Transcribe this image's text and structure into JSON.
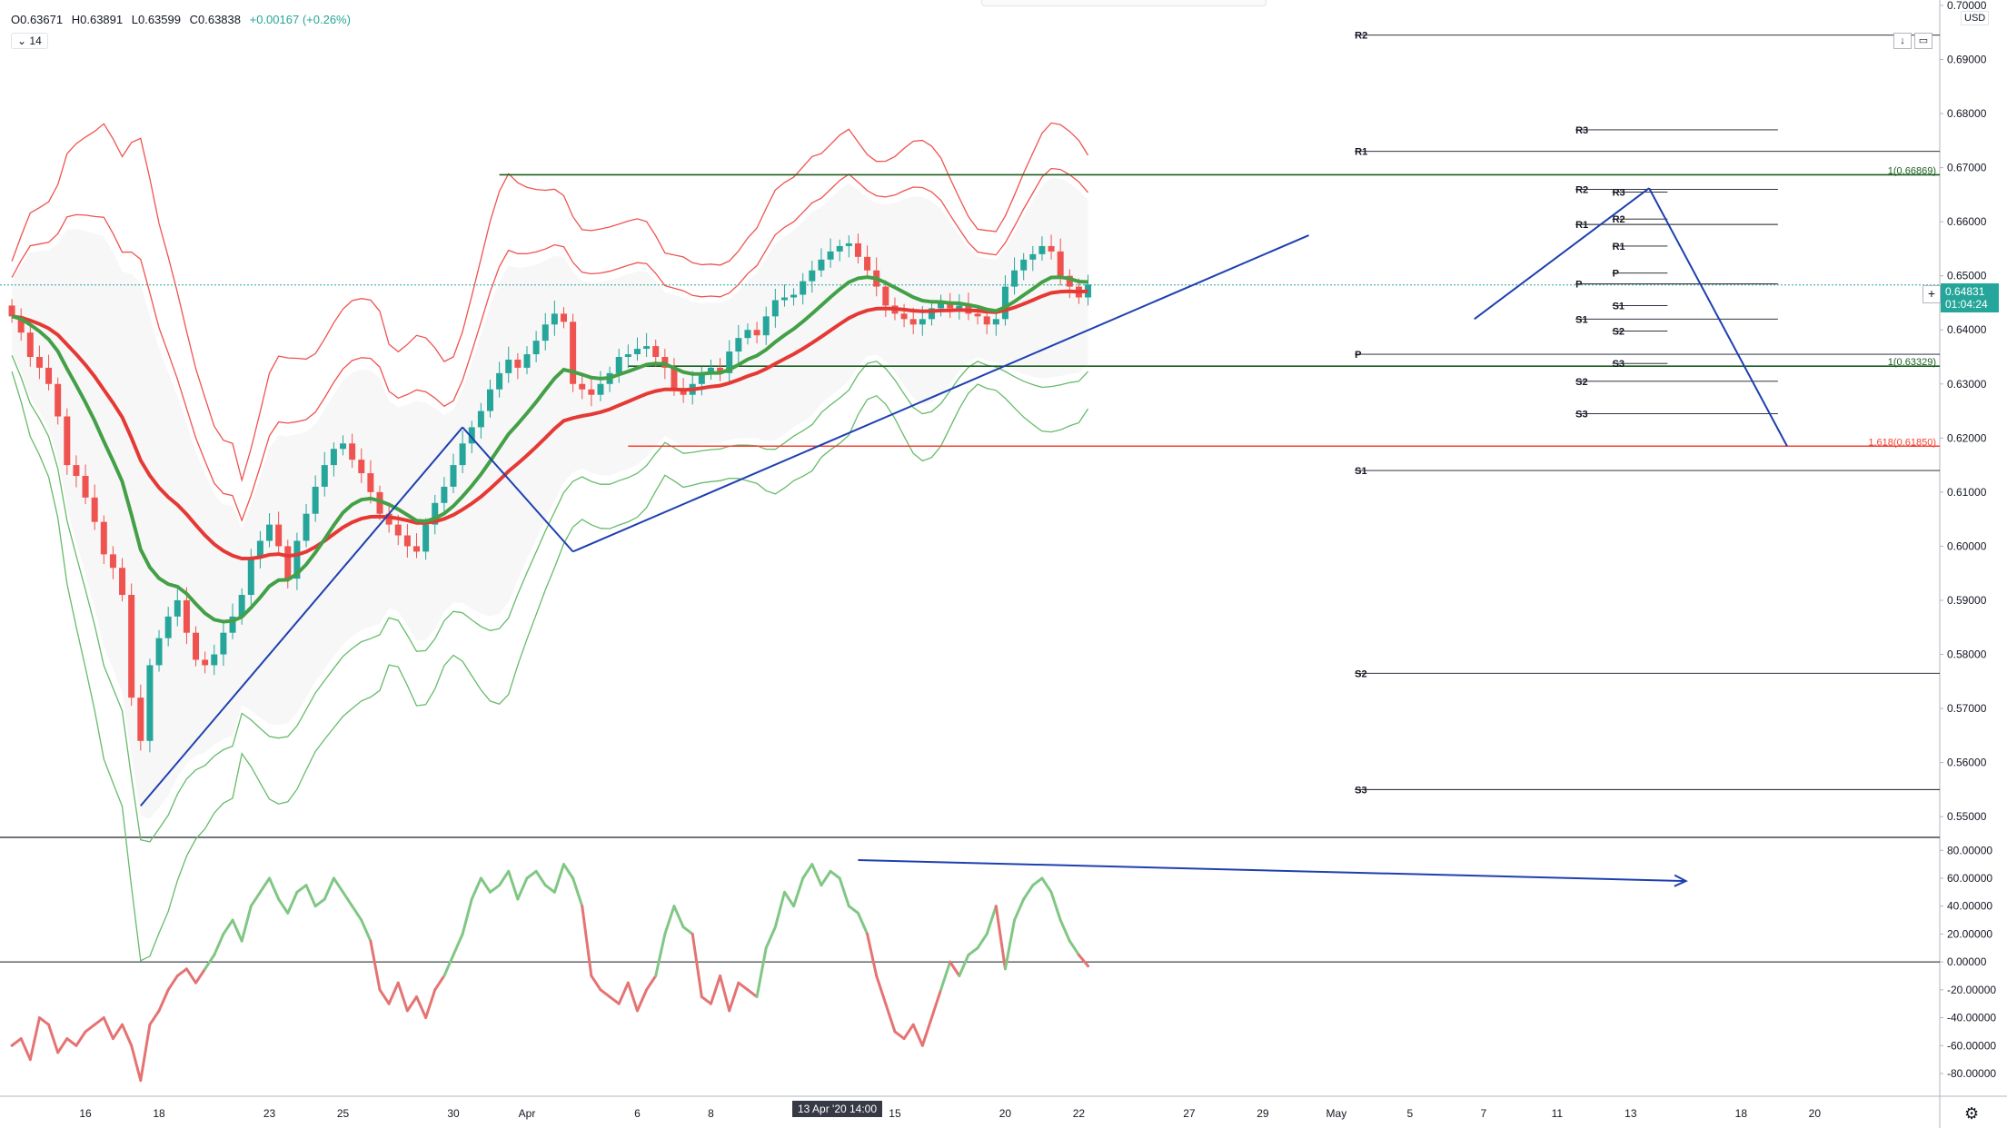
{
  "header": {
    "open": "O0.63671",
    "high": "H0.63891",
    "low": "L0.63599",
    "close": "C0.63838",
    "change": "+0.00167 (+0.26%)",
    "indicator_toggle": "⌄",
    "indicator_period": "14"
  },
  "currency": "USD",
  "last_price": "0.64831",
  "countdown": "01:04:24",
  "crosshair_date": "13 Apr '20   14:00",
  "colors": {
    "up": "#26a69a",
    "down": "#ef5350",
    "green_line": "#43a047",
    "red_line": "#e53935",
    "trend": "#1e40af",
    "fib": "#1b5e20",
    "fib_red": "#f44336"
  },
  "chart_data": {
    "type": "candlestick",
    "symbol_quote": "USD",
    "price_axis": {
      "ticks": [
        "0.55000",
        "0.56000",
        "0.57000",
        "0.58000",
        "0.59000",
        "0.60000",
        "0.61000",
        "0.62000",
        "0.63000",
        "0.64000",
        "0.65000",
        "0.66000",
        "0.67000",
        "0.68000",
        "0.69000",
        "0.70000"
      ],
      "range": [
        0.5465,
        0.701
      ]
    },
    "time_axis": {
      "labels": [
        "16",
        "18",
        "23",
        "25",
        "30",
        "Apr",
        "6",
        "8",
        "15",
        "20",
        "22",
        "27",
        "29",
        "May",
        "5",
        "7",
        "11",
        "13",
        "18",
        "20"
      ],
      "label_bars": [
        8,
        16,
        28,
        36,
        48,
        56,
        68,
        76,
        96,
        108,
        116,
        128,
        136,
        144,
        152,
        160,
        168,
        176,
        188,
        196
      ]
    },
    "candles_close": [
      0.6425,
      0.6395,
      0.635,
      0.633,
      0.63,
      0.624,
      0.615,
      0.613,
      0.609,
      0.6045,
      0.5985,
      0.596,
      0.591,
      0.572,
      0.564,
      0.578,
      0.583,
      0.587,
      0.59,
      0.584,
      0.579,
      0.578,
      0.58,
      0.584,
      0.587,
      0.591,
      0.598,
      0.601,
      0.604,
      0.6,
      0.594,
      0.601,
      0.606,
      0.611,
      0.615,
      0.618,
      0.619,
      0.616,
      0.6135,
      0.61,
      0.606,
      0.604,
      0.602,
      0.6,
      0.599,
      0.604,
      0.608,
      0.611,
      0.615,
      0.619,
      0.622,
      0.625,
      0.629,
      0.632,
      0.6345,
      0.633,
      0.6355,
      0.638,
      0.641,
      0.643,
      0.6415,
      0.63,
      0.629,
      0.628,
      0.63,
      0.632,
      0.635,
      0.6355,
      0.6365,
      0.637,
      0.635,
      0.633,
      0.629,
      0.628,
      0.63,
      0.632,
      0.633,
      0.632,
      0.636,
      0.6385,
      0.64,
      0.639,
      0.6425,
      0.6455,
      0.646,
      0.6465,
      0.649,
      0.651,
      0.653,
      0.6545,
      0.6555,
      0.656,
      0.6535,
      0.651,
      0.648,
      0.6445,
      0.643,
      0.642,
      0.641,
      0.642,
      0.644,
      0.645,
      0.644,
      0.6445,
      0.643,
      0.6425,
      0.641,
      0.642,
      0.648,
      0.651,
      0.653,
      0.654,
      0.6555,
      0.6545,
      0.65,
      0.648,
      0.646,
      0.6484
    ],
    "pivot_levels_monthly": [
      {
        "label": "R2",
        "price": 0.6945
      },
      {
        "label": "R1",
        "price": 0.673
      },
      {
        "label": "P",
        "price": 0.6355
      },
      {
        "label": "S1",
        "price": 0.614
      },
      {
        "label": "S2",
        "price": 0.5765
      },
      {
        "label": "S3",
        "price": 0.555
      }
    ],
    "pivot_levels_weekly": [
      {
        "label": "R3",
        "price": 0.677
      },
      {
        "label": "R2",
        "price": 0.666
      },
      {
        "label": "R1",
        "price": 0.6595
      },
      {
        "label": "P",
        "price": 0.6485
      },
      {
        "label": "S1",
        "price": 0.642
      },
      {
        "label": "S2",
        "price": 0.6305
      },
      {
        "label": "S3",
        "price": 0.6245
      }
    ],
    "pivot_levels_daily": [
      {
        "label": "R3",
        "price": 0.6655
      },
      {
        "label": "R2",
        "price": 0.6605
      },
      {
        "label": "R1",
        "price": 0.6555
      },
      {
        "label": "P",
        "price": 0.6505
      },
      {
        "label": "S1",
        "price": 0.6445
      },
      {
        "label": "S2",
        "price": 0.6398
      },
      {
        "label": "S3",
        "price": 0.6338
      }
    ],
    "fib_levels": [
      {
        "label": "1(0.66869)",
        "price": 0.66869,
        "color": "#1b5e20"
      },
      {
        "label": "1(0.63329)",
        "price": 0.63329,
        "color": "#1b5e20"
      },
      {
        "label": "1.618(0.61850)",
        "price": 0.6185,
        "color": "#f44336"
      }
    ],
    "oscillator": {
      "ticks": [
        "-80.00000",
        "-60.00000",
        "-40.00000",
        "-20.00000",
        "0.00000",
        "20.00000",
        "40.00000",
        "60.00000",
        "80.00000"
      ],
      "range": [
        -95,
        88
      ],
      "values": [
        -60,
        -55,
        -70,
        -40,
        -45,
        -65,
        -55,
        -60,
        -50,
        -45,
        -40,
        -55,
        -45,
        -60,
        -85,
        -45,
        -35,
        -20,
        -10,
        -5,
        -15,
        -5,
        5,
        20,
        30,
        15,
        40,
        50,
        60,
        45,
        35,
        50,
        55,
        40,
        45,
        60,
        50,
        40,
        30,
        15,
        -20,
        -30,
        -15,
        -35,
        -25,
        -40,
        -20,
        -10,
        5,
        20,
        45,
        60,
        50,
        55,
        65,
        45,
        60,
        65,
        55,
        50,
        70,
        60,
        40,
        -10,
        -20,
        -25,
        -30,
        -15,
        -35,
        -20,
        -10,
        20,
        40,
        25,
        20,
        -25,
        -30,
        -10,
        -35,
        -15,
        -20,
        -25,
        10,
        25,
        50,
        40,
        60,
        70,
        55,
        65,
        60,
        40,
        35,
        20,
        -10,
        -30,
        -50,
        -55,
        -45,
        -60,
        -40,
        -20,
        0,
        -10,
        5,
        10,
        20,
        40,
        -5,
        30,
        45,
        55,
        60,
        50,
        30,
        15,
        5,
        -3
      ],
      "divergence_line": {
        "from": {
          "bar": 92,
          "value": 73
        },
        "to": {
          "bar": 182,
          "value": 58
        }
      }
    },
    "trend_lines": [
      {
        "from": {
          "bar": 14,
          "price": 0.552
        },
        "to": {
          "bar": 49,
          "price": 0.622
        }
      },
      {
        "from": {
          "bar": 49,
          "price": 0.622
        },
        "to": {
          "bar": 61,
          "price": 0.599
        }
      },
      {
        "from": {
          "bar": 61,
          "price": 0.599
        },
        "to": {
          "bar": 141,
          "price": 0.6575
        }
      },
      {
        "from": {
          "bar": 159,
          "price": 0.642
        },
        "to": {
          "bar": 178,
          "price": 0.6662
        }
      },
      {
        "from": {
          "bar": 178,
          "price": 0.6662
        },
        "to": {
          "bar": 193,
          "price": 0.6185
        }
      }
    ],
    "grid": false,
    "legend": "none"
  }
}
